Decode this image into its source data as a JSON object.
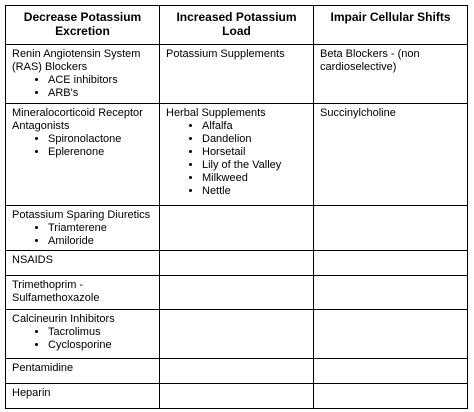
{
  "table": {
    "header": [
      "Decrease Potassium Excretion",
      "Increased Potassium Load",
      "Impair Cellular Shifts"
    ],
    "rows": [
      [
        {
          "text": "Renin Angiotensin System (RAS) Blockers",
          "items": [
            "ACE inhibitors",
            "ARB's"
          ]
        },
        {
          "text": "Potassium Supplements"
        },
        {
          "text": "Beta Blockers - (non cardioselective)"
        }
      ],
      [
        {
          "text": "Mineralocorticoid Receptor Antagonists",
          "items": [
            "Spironolactone",
            "Eplerenone"
          ]
        },
        {
          "text": "Herbal Supplements",
          "items": [
            "Alfalfa",
            "Dandelion",
            "Horsetail",
            "Lily of the Valley",
            "Milkweed",
            "Nettle"
          ]
        },
        {
          "text": "Succinylcholine"
        }
      ],
      [
        {
          "text": "Potassium Sparing Diuretics",
          "items": [
            "Triamterene",
            "Amiloride"
          ]
        },
        null,
        null
      ],
      [
        {
          "text": "NSAIDS"
        },
        null,
        null
      ],
      [
        {
          "text": "Trimethoprim - Sulfamethoxazole"
        },
        null,
        null
      ],
      [
        {
          "text": "Calcineurin Inhibitors",
          "items": [
            "Tacrolimus",
            "Cyclosporine"
          ]
        },
        null,
        null
      ],
      [
        {
          "text": "Pentamidine"
        },
        null,
        null
      ],
      [
        {
          "text": "Heparin"
        },
        null,
        null
      ]
    ]
  }
}
